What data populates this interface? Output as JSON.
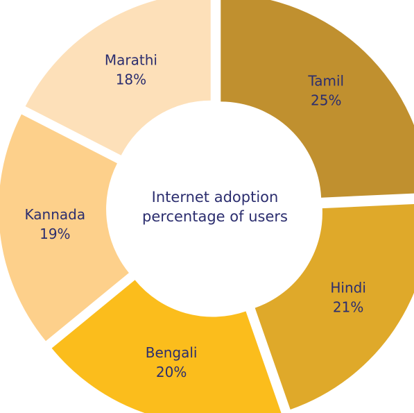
{
  "chart_data": {
    "type": "donut",
    "title": "Internet adoption percentage of users",
    "categories": [
      "Tamil",
      "Hindi",
      "Bengali",
      "Kannada",
      "Marathi"
    ],
    "values": [
      25,
      21,
      20,
      19,
      18
    ],
    "value_labels": [
      "25%",
      "21%",
      "20%",
      "19%",
      "18%"
    ],
    "colors": [
      "#c0902f",
      "#dfa92a",
      "#fbbd1c",
      "#fdd08b",
      "#fde0b9"
    ]
  }
}
